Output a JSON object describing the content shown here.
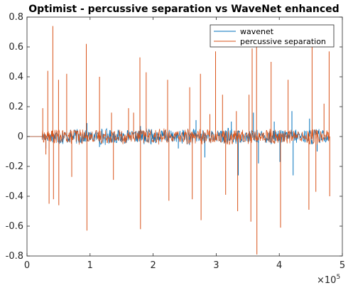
{
  "chart_data": {
    "type": "line",
    "title": "Optimist - percussive separation vs WaveNet enhanced",
    "xlabel": "",
    "ylabel": "",
    "xlim": [
      0,
      500000
    ],
    "ylim": [
      -0.8,
      0.8
    ],
    "x_ticks": [
      0,
      100000,
      200000,
      300000,
      400000,
      500000
    ],
    "x_tick_labels": [
      "0",
      "1",
      "2",
      "3",
      "4",
      "5"
    ],
    "x_exponent_label": "×10",
    "x_exponent_power": "5",
    "y_ticks": [
      -0.8,
      -0.6,
      -0.4,
      -0.2,
      0,
      0.2,
      0.4,
      0.6,
      0.8
    ],
    "y_tick_labels": [
      "-0.8",
      "-0.6",
      "-0.4",
      "-0.2",
      "0",
      "0.2",
      "0.4",
      "0.6",
      "0.8"
    ],
    "grid": false,
    "legend_position": "top-right",
    "series": [
      {
        "name": "wavenet",
        "color": "#0072BD",
        "signal_start": 24000,
        "signal_end": 480000,
        "noise_amplitude": 0.05,
        "spikes": [
          [
            30000,
            -0.08
          ],
          [
            95000,
            0.09
          ],
          [
            115000,
            -0.07
          ],
          [
            180000,
            0.07
          ],
          [
            240000,
            -0.08
          ],
          [
            268000,
            0.11
          ],
          [
            282000,
            -0.14
          ],
          [
            299000,
            0.09
          ],
          [
            324000,
            0.1
          ],
          [
            335000,
            -0.26
          ],
          [
            359000,
            0.16
          ],
          [
            367000,
            -0.18
          ],
          [
            392000,
            0.1
          ],
          [
            401000,
            -0.17
          ],
          [
            420000,
            0.17
          ],
          [
            422000,
            -0.26
          ],
          [
            448000,
            0.12
          ],
          [
            460000,
            -0.1
          ]
        ]
      },
      {
        "name": "percussive separation",
        "color": "#D95319",
        "signal_start": 24000,
        "signal_end": 480000,
        "noise_amplitude": 0.05,
        "spikes": [
          [
            25000,
            0.19
          ],
          [
            30000,
            -0.12
          ],
          [
            33000,
            0.44
          ],
          [
            35000,
            -0.45
          ],
          [
            40000,
            0.04
          ],
          [
            41000,
            0.74
          ],
          [
            42000,
            -0.42
          ],
          [
            50000,
            0.38
          ],
          [
            50500,
            -0.46
          ],
          [
            63000,
            0.42
          ],
          [
            71000,
            -0.27
          ],
          [
            94000,
            0.62
          ],
          [
            95000,
            -0.63
          ],
          [
            115000,
            0.4
          ],
          [
            134000,
            0.16
          ],
          [
            137000,
            -0.29
          ],
          [
            161000,
            0.19
          ],
          [
            169000,
            0.16
          ],
          [
            179000,
            0.53
          ],
          [
            180000,
            -0.62
          ],
          [
            189000,
            0.43
          ],
          [
            223000,
            0.38
          ],
          [
            225000,
            -0.43
          ],
          [
            258000,
            0.33
          ],
          [
            262000,
            -0.42
          ],
          [
            275000,
            0.42
          ],
          [
            276000,
            -0.56
          ],
          [
            290000,
            0.15
          ],
          [
            299000,
            0.57
          ],
          [
            310000,
            0.28
          ],
          [
            315000,
            -0.39
          ],
          [
            332000,
            0.17
          ],
          [
            334000,
            -0.5
          ],
          [
            352000,
            0.28
          ],
          [
            355000,
            -0.57
          ],
          [
            357000,
            0.59
          ],
          [
            364000,
            0.61
          ],
          [
            364500,
            -0.79
          ],
          [
            387000,
            0.5
          ],
          [
            402000,
            -0.61
          ],
          [
            414000,
            0.38
          ],
          [
            447000,
            -0.49
          ],
          [
            452000,
            0.6
          ],
          [
            458000,
            -0.37
          ],
          [
            471000,
            0.22
          ],
          [
            479000,
            0.57
          ],
          [
            480000,
            -0.4
          ]
        ]
      }
    ]
  }
}
